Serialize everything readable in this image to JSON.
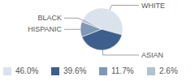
{
  "chart_data": {
    "type": "pie",
    "categories": [
      "WHITE",
      "ASIAN",
      "HISPANIC",
      "BLACK"
    ],
    "values": [
      46.0,
      39.6,
      11.7,
      2.6
    ],
    "value_labels": [
      "46.0%",
      "39.6%",
      "11.7%",
      "2.6%"
    ],
    "colors": [
      "#dae2eb",
      "#3e5f8d",
      "#8098b5",
      "#b3c1d1"
    ],
    "legend": "bottom"
  }
}
